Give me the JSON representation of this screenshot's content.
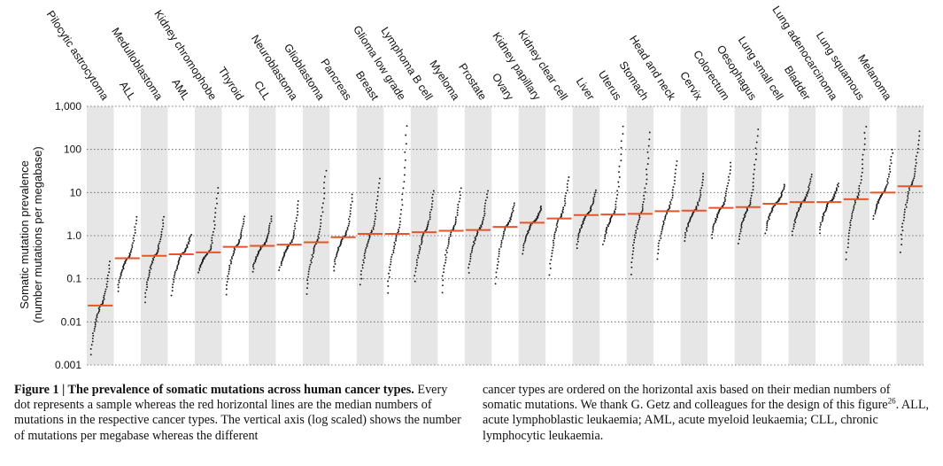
{
  "chart_data": {
    "type": "scatter",
    "y_scale": "log",
    "ylim": [
      0.001,
      1000
    ],
    "yticks": [
      {
        "value": 1000,
        "label": "1,000"
      },
      {
        "value": 100,
        "label": "100"
      },
      {
        "value": 10,
        "label": "10"
      },
      {
        "value": 1,
        "label": "1.0"
      },
      {
        "value": 0.1,
        "label": "0.1"
      },
      {
        "value": 0.01,
        "label": "0.01"
      },
      {
        "value": 0.001,
        "label": "0.001"
      }
    ],
    "ylabel_line1": "Somatic mutation prevalence",
    "ylabel_line2": "(number mutations per megabase)",
    "grid": "dotted horizontal at each decade",
    "colors": {
      "dots": "#1a1a1a",
      "median": "#e8542a",
      "band": "#e6e6e6"
    },
    "categories": [
      {
        "name": "Pilocytic astrocytoma",
        "median": 0.024,
        "min": 0.0012,
        "max": 0.28
      },
      {
        "name": "ALL",
        "median": 0.3,
        "min": 0.04,
        "max": 3.0
      },
      {
        "name": "Medulloblastoma",
        "median": 0.34,
        "min": 0.02,
        "max": 3.0
      },
      {
        "name": "AML",
        "median": 0.37,
        "min": 0.03,
        "max": 1.1
      },
      {
        "name": "Kidney chromophobe",
        "median": 0.41,
        "min": 0.12,
        "max": 15
      },
      {
        "name": "Thyroid",
        "median": 0.55,
        "min": 0.03,
        "max": 3.0
      },
      {
        "name": "CLL",
        "median": 0.58,
        "min": 0.12,
        "max": 3.0
      },
      {
        "name": "Neuroblastoma",
        "median": 0.62,
        "min": 0.13,
        "max": 7.0
      },
      {
        "name": "Glioblastoma",
        "median": 0.7,
        "min": 0.03,
        "max": 38
      },
      {
        "name": "Pancreas",
        "median": 0.92,
        "min": 0.12,
        "max": 10
      },
      {
        "name": "Breast",
        "median": 1.1,
        "min": 0.05,
        "max": 24
      },
      {
        "name": "Glioma low grade",
        "median": 1.1,
        "min": 0.03,
        "max": 450
      },
      {
        "name": "Lymphoma B cell",
        "median": 1.2,
        "min": 0.06,
        "max": 12
      },
      {
        "name": "Myeloma",
        "median": 1.3,
        "min": 0.03,
        "max": 14
      },
      {
        "name": "Prostate",
        "median": 1.35,
        "min": 0.1,
        "max": 12
      },
      {
        "name": "Ovary",
        "median": 1.6,
        "min": 0.05,
        "max": 6.0
      },
      {
        "name": "Kidney papillary",
        "median": 2.0,
        "min": 0.3,
        "max": 5.0
      },
      {
        "name": "Kidney clear cell",
        "median": 2.5,
        "min": 0.08,
        "max": 25
      },
      {
        "name": "Liver",
        "median": 3.0,
        "min": 0.4,
        "max": 12
      },
      {
        "name": "Uterus",
        "median": 3.1,
        "min": 0.5,
        "max": 420
      },
      {
        "name": "Stomach",
        "median": 3.2,
        "min": 0.08,
        "max": 300
      },
      {
        "name": "Head and neck",
        "median": 3.7,
        "min": 0.2,
        "max": 60
      },
      {
        "name": "Cervix",
        "median": 3.8,
        "min": 0.6,
        "max": 30
      },
      {
        "name": "Colorectum",
        "median": 4.4,
        "min": 0.7,
        "max": 55
      },
      {
        "name": "Oesophagus",
        "median": 4.6,
        "min": 0.5,
        "max": 350
      },
      {
        "name": "Lung small cell",
        "median": 5.5,
        "min": 0.9,
        "max": 16
      },
      {
        "name": "Bladder",
        "median": 6.0,
        "min": 0.8,
        "max": 28
      },
      {
        "name": "Lung adenocarcinoma",
        "median": 6.0,
        "min": 0.9,
        "max": 17
      },
      {
        "name": "Lung squamous",
        "median": 7.0,
        "min": 0.18,
        "max": 400
      },
      {
        "name": "Melanoma",
        "median": 10,
        "min": 2.0,
        "max": 110
      },
      {
        "name": "",
        "median": 14,
        "min": 0.25,
        "max": 300
      }
    ]
  },
  "caption": {
    "label": "Figure 1 | The prevalence of somatic mutations across human cancer types.",
    "left_text": " Every dot represents a sample whereas the red horizontal lines are the median numbers of mutations in the respective cancer types. The vertical axis (log scaled) shows the number of mutations per megabase whereas the different",
    "right_text_1": "cancer types are ordered on the horizontal axis based on their median numbers of somatic mutations. We thank G. Getz and colleagues for the design of this figure",
    "right_ref": "26",
    "right_text_2": ". ALL, acute lymphoblastic leukaemia; AML, acute myeloid leukaemia; CLL, chronic lymphocytic leukaemia."
  }
}
